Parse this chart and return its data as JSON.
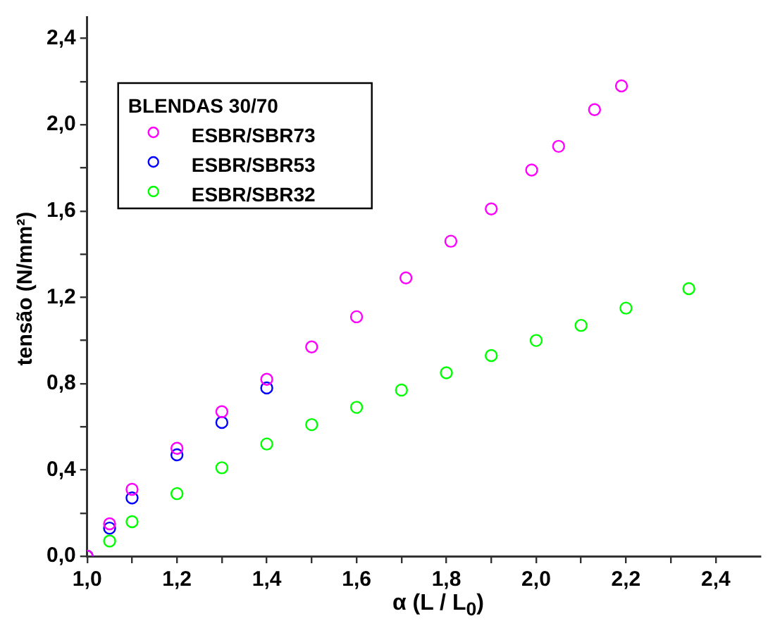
{
  "chart_data": {
    "type": "scatter",
    "xlabel": "α (L / L$_{0}$)",
    "ylabel": "tensão (N/mm²)",
    "legend_title": "BLENDAS 30/70",
    "legend": "top left",
    "marker": "circle",
    "grid": false,
    "xlim": [
      1.0,
      2.5
    ],
    "ylim": [
      0,
      2.5
    ],
    "xticks": [
      {
        "value": 1.0,
        "label": "1,0"
      },
      {
        "value": 1.1,
        "label": null
      },
      {
        "value": 1.2,
        "label": "1,2"
      },
      {
        "value": 1.3,
        "label": null
      },
      {
        "value": 1.4,
        "label": "1,4"
      },
      {
        "value": 1.5,
        "label": null
      },
      {
        "value": 1.6,
        "label": "1,6"
      },
      {
        "value": 1.7,
        "label": null
      },
      {
        "value": 1.8,
        "label": "1,8"
      },
      {
        "value": 1.9,
        "label": null
      },
      {
        "value": 2.0,
        "label": "2,0"
      },
      {
        "value": 2.1,
        "label": null
      },
      {
        "value": 2.2,
        "label": "2,2"
      },
      {
        "value": 2.3,
        "label": null
      },
      {
        "value": 2.4,
        "label": "2,4"
      }
    ],
    "yticks": [
      {
        "value": 0,
        "label": "0,0"
      },
      {
        "value": 0.2,
        "label": null
      },
      {
        "value": 0.4,
        "label": "0,4"
      },
      {
        "value": 0.6,
        "label": null
      },
      {
        "value": 0.8,
        "label": "0,8"
      },
      {
        "value": 1.0,
        "label": null
      },
      {
        "value": 1.2,
        "label": "1,2"
      },
      {
        "value": 1.4,
        "label": null
      },
      {
        "value": 1.6,
        "label": "1,6"
      },
      {
        "value": 1.8,
        "label": null
      },
      {
        "value": 2.0,
        "label": "2,0"
      },
      {
        "value": 2.2,
        "label": null
      },
      {
        "value": 2.4,
        "label": "2,4"
      }
    ],
    "series": [
      {
        "name": "ESBR/SBR73",
        "color": "#ff00ff",
        "x": [
          1.0,
          1.05,
          1.1,
          1.2,
          1.3,
          1.4,
          1.5,
          1.6,
          1.71,
          1.81,
          1.9,
          1.99,
          2.05,
          2.13,
          2.19
        ],
        "values": [
          0,
          0.15,
          0.31,
          0.5,
          0.67,
          0.82,
          0.97,
          1.11,
          1.29,
          1.46,
          1.61,
          1.79,
          1.9,
          2.07,
          2.18
        ]
      },
      {
        "name": "ESBR/SBR53",
        "color": "#0000ff",
        "x": [
          1.0,
          1.05,
          1.1,
          1.2,
          1.3,
          1.4
        ],
        "values": [
          0,
          0.13,
          0.27,
          0.47,
          0.62,
          0.78
        ]
      },
      {
        "name": "ESBR/SBR32",
        "color": "#00ff00",
        "x": [
          1.0,
          1.05,
          1.1,
          1.2,
          1.3,
          1.4,
          1.5,
          1.6,
          1.7,
          1.8,
          1.9,
          2.0,
          2.1,
          2.2,
          2.34
        ],
        "values": [
          0,
          0.07,
          0.16,
          0.29,
          0.41,
          0.52,
          0.61,
          0.69,
          0.77,
          0.85,
          0.93,
          1.0,
          1.07,
          1.15,
          1.24
        ]
      }
    ]
  }
}
